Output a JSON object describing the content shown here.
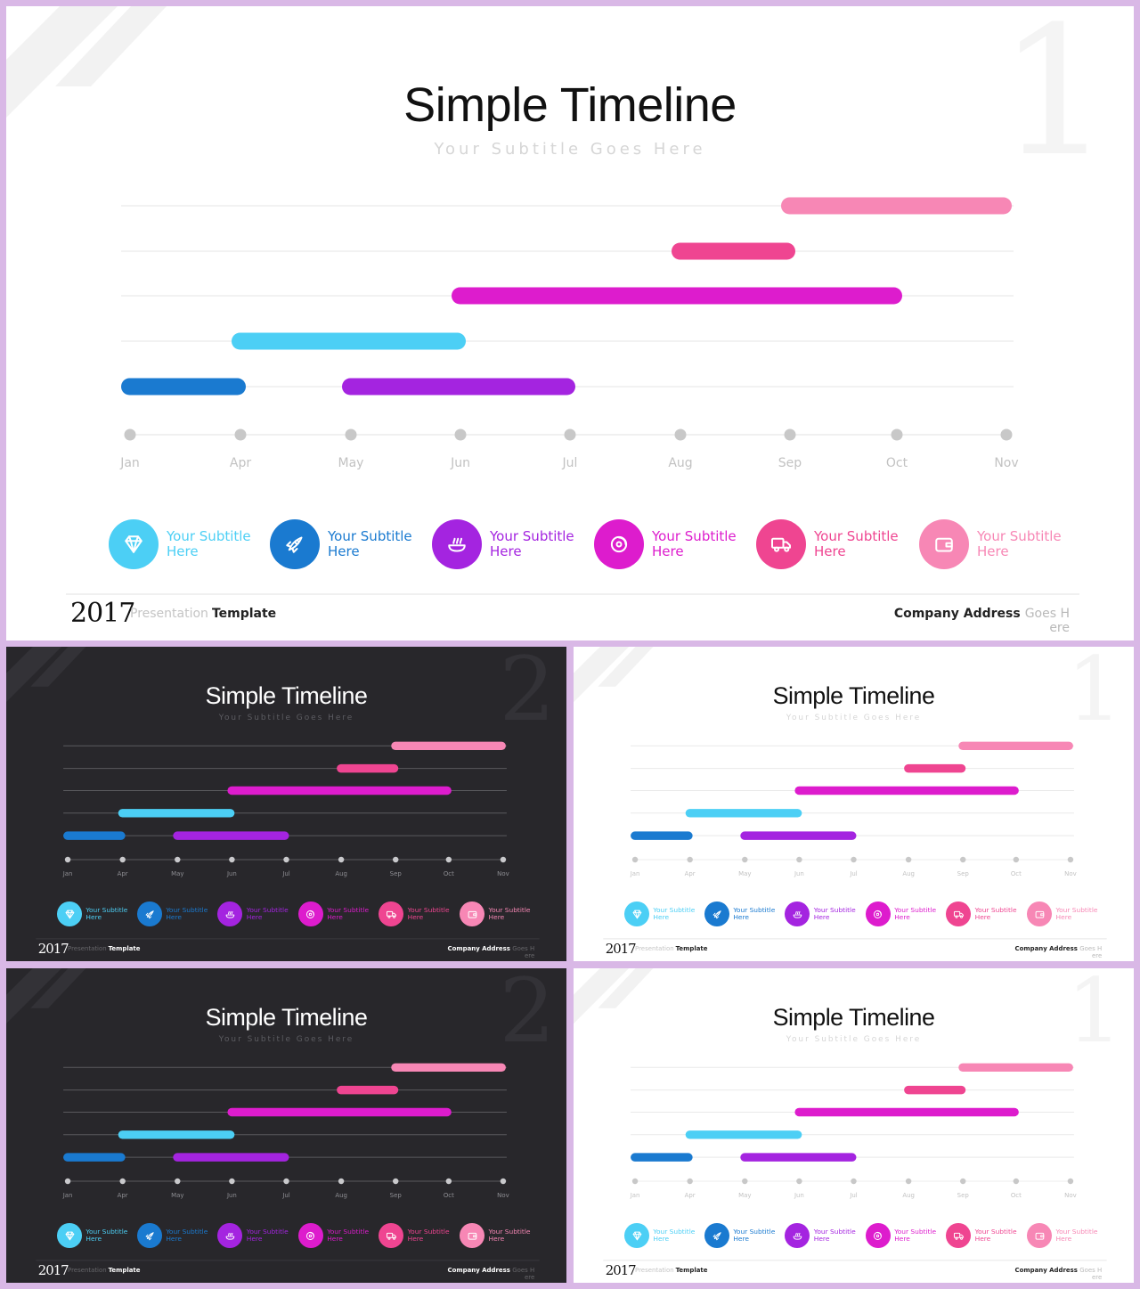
{
  "title": "Simple Timeline",
  "subtitle": "Your Subtitle Goes Here",
  "months": [
    "Jan",
    "Apr",
    "May",
    "Jun",
    "Jul",
    "Aug",
    "Sep",
    "Oct",
    "Nov"
  ],
  "bars": [
    {
      "row": 1,
      "start": "Jan",
      "end": "Apr",
      "color": "#1a7ad0"
    },
    {
      "row": 1,
      "start": "May",
      "end": "Jul",
      "color": "#a424e0"
    },
    {
      "row": 2,
      "start": "Apr",
      "end": "Jun",
      "color": "#4ccff5"
    },
    {
      "row": 3,
      "start": "Jun",
      "end": "Oct",
      "color": "#dd1ccd"
    },
    {
      "row": 4,
      "start": "Aug",
      "end": "Sep",
      "color": "#ef4591"
    },
    {
      "row": 5,
      "start": "Sep",
      "end": "Nov",
      "color": "#f787b5"
    }
  ],
  "legend": [
    {
      "label": "Your Subtitle Here",
      "color": "#4ccff5",
      "text_color": "#4ccff5",
      "icon": "diamond-icon"
    },
    {
      "label": "Your Subtitle Here",
      "color": "#1a7ad0",
      "text_color": "#1a7ad0",
      "icon": "rocket-icon"
    },
    {
      "label": "Your Subtitle Here",
      "color": "#a424e0",
      "text_color": "#a424e0",
      "icon": "dish-icon"
    },
    {
      "label": "Your Subtitle Here",
      "color": "#dd1ccd",
      "text_color": "#dd1ccd",
      "icon": "disc-icon"
    },
    {
      "label": "Your Subtitle Here",
      "color": "#ef4591",
      "text_color": "#ef4591",
      "icon": "truck-icon"
    },
    {
      "label": "Your Subtitle Here",
      "color": "#f787b5",
      "text_color": "#f787b5",
      "icon": "wallet-icon"
    }
  ],
  "footer": {
    "year": "2017",
    "presentation": "Presentation",
    "template": "Template",
    "company": "Company Address",
    "goes": "Goes H",
    "goes_wrap": "ere"
  },
  "slides": [
    {
      "theme": "light",
      "number": "1"
    },
    {
      "theme": "dark",
      "number": "2"
    },
    {
      "theme": "light",
      "number": "1"
    },
    {
      "theme": "dark",
      "number": "2"
    },
    {
      "theme": "light",
      "number": "1"
    }
  ]
}
